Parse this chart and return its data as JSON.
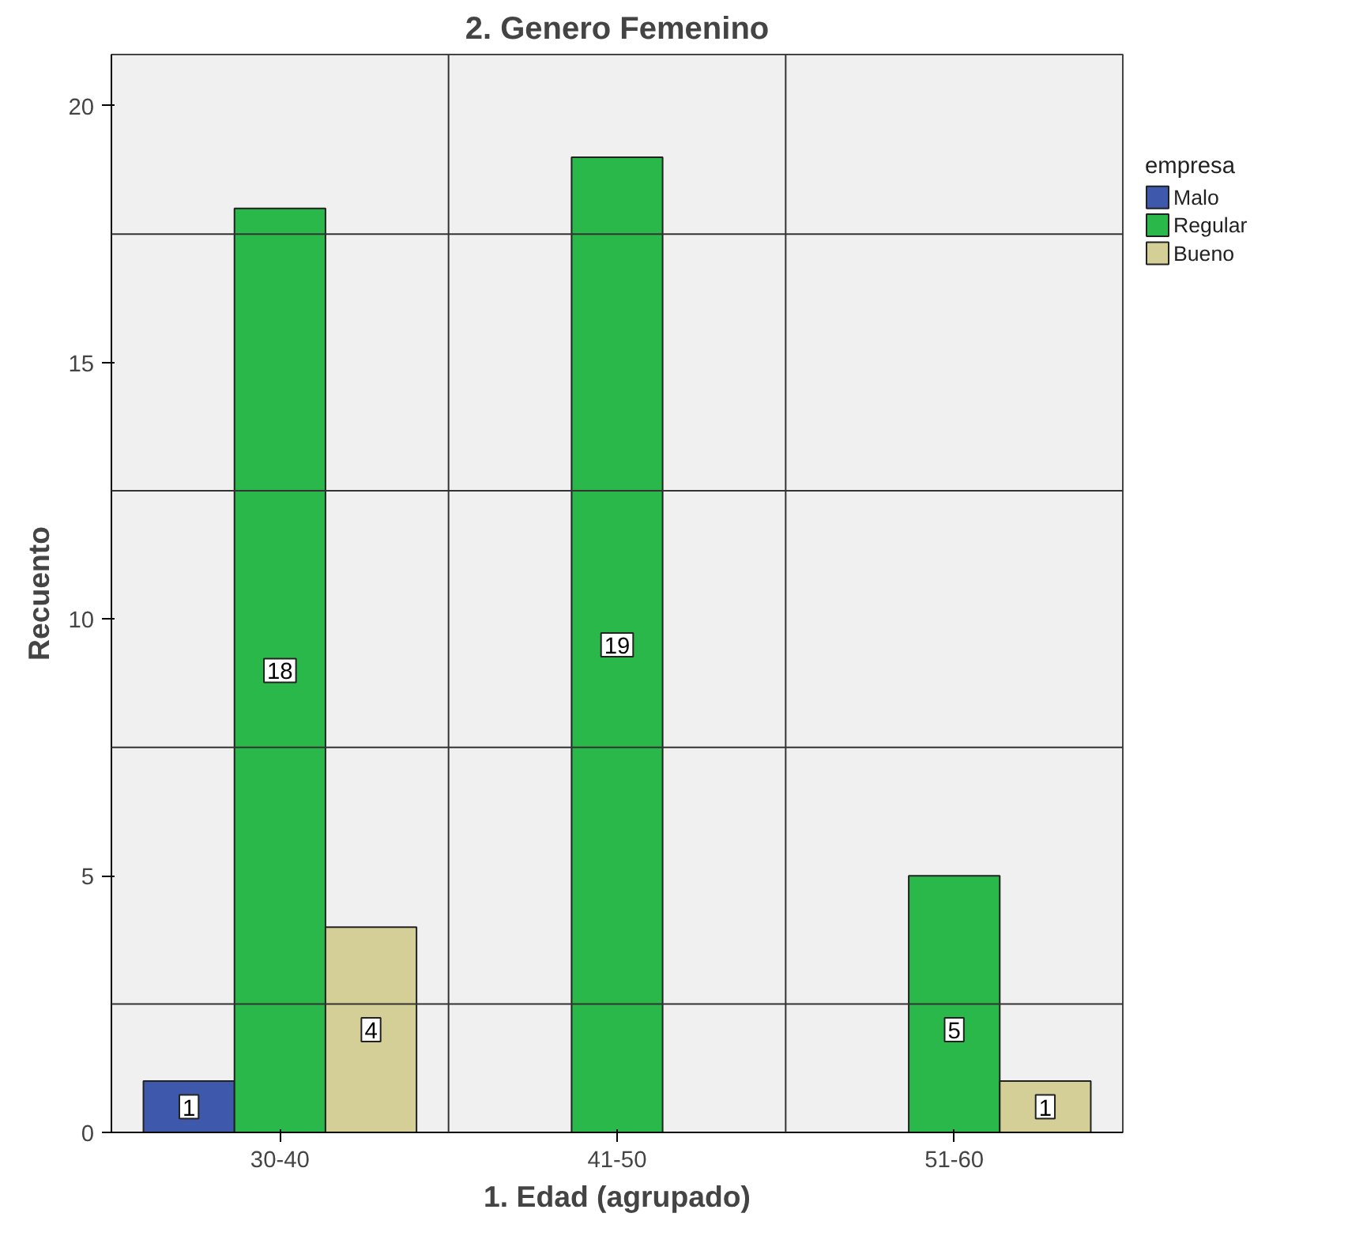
{
  "chart_data": {
    "type": "bar",
    "title": "2. Genero Femenino",
    "xlabel": "1. Edad (agrupado)",
    "ylabel": "Recuento",
    "legend_title": "empresa",
    "categories": [
      "30-40",
      "41-50",
      "51-60"
    ],
    "series": [
      {
        "name": "Malo",
        "color": "#3e58ac",
        "values": [
          1,
          null,
          null
        ]
      },
      {
        "name": "Regular",
        "color": "#2bb84a",
        "values": [
          18,
          19,
          5
        ]
      },
      {
        "name": "Bueno",
        "color": "#d4cf97",
        "values": [
          4,
          null,
          1
        ]
      }
    ],
    "ylim": [
      0,
      21
    ],
    "yticks": [
      0,
      5,
      10,
      15,
      20
    ],
    "grid": true,
    "legend": "right",
    "data_labels": true
  }
}
